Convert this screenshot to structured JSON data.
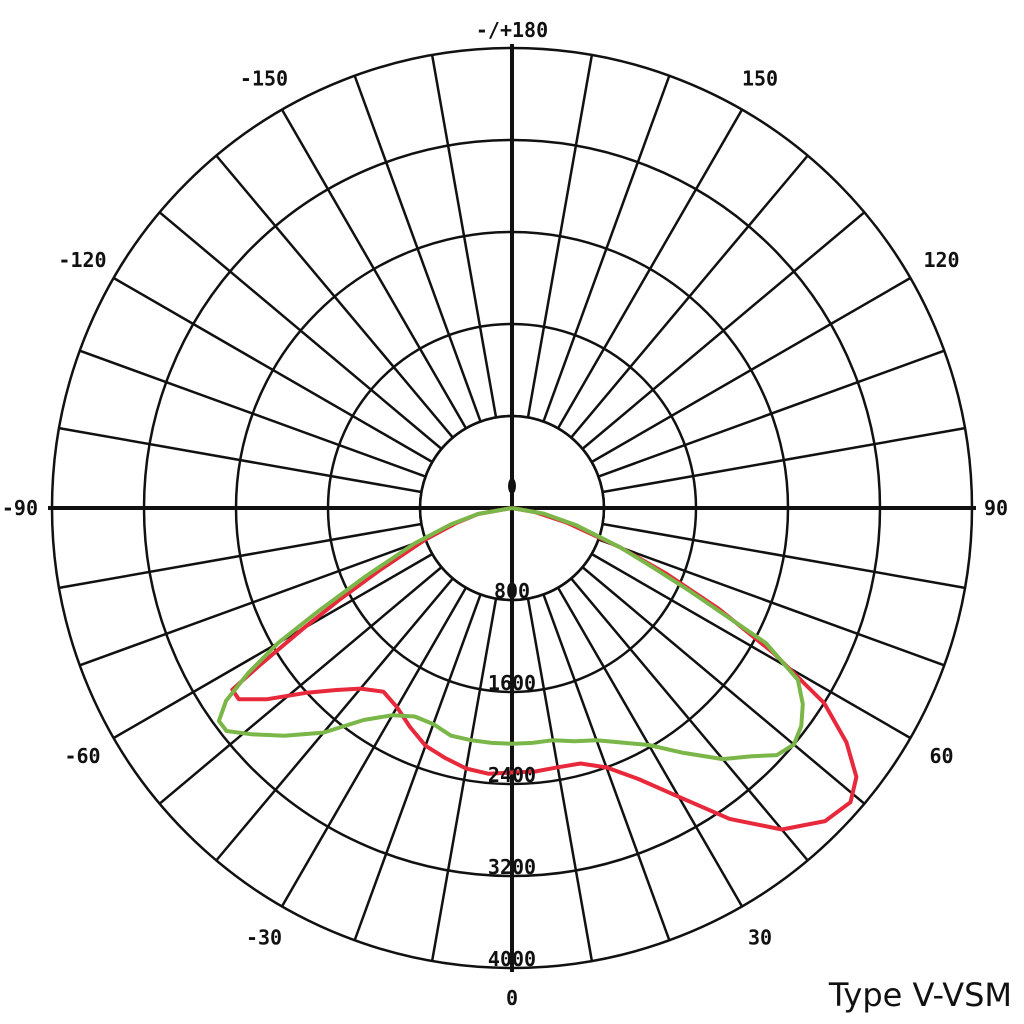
{
  "chart_data": {
    "type": "polar",
    "angle_unit": "degrees",
    "angle_zero": "bottom",
    "angle_direction": "positive to the right",
    "angle_range": [
      -180,
      180
    ],
    "angle_grid_step": 10,
    "angle_labels": [
      {
        "value": 0,
        "text": "0"
      },
      {
        "value": 30,
        "text": "30"
      },
      {
        "value": 60,
        "text": "60"
      },
      {
        "value": 90,
        "text": "90"
      },
      {
        "value": 120,
        "text": "120"
      },
      {
        "value": 150,
        "text": "150"
      },
      {
        "value": 180,
        "text": "-/+180"
      },
      {
        "value": -150,
        "text": "-150"
      },
      {
        "value": -120,
        "text": "-120"
      },
      {
        "value": -90,
        "text": "-90"
      },
      {
        "value": -60,
        "text": "-60"
      },
      {
        "value": -30,
        "text": "-30"
      }
    ],
    "radial_range": [
      0,
      4000
    ],
    "radial_ticks": [
      800,
      1600,
      2400,
      3200,
      4000
    ],
    "grid": true,
    "series": [
      {
        "color": "#e8293b",
        "points": [
          [
            -90,
            0
          ],
          [
            -80,
            300
          ],
          [
            -75,
            500
          ],
          [
            -70,
            800
          ],
          [
            -65,
            1250
          ],
          [
            -62,
            1700
          ],
          [
            -60,
            2100
          ],
          [
            -58,
            2600
          ],
          [
            -57,
            2900
          ],
          [
            -55,
            2900
          ],
          [
            -52,
            2700
          ],
          [
            -48,
            2400
          ],
          [
            -44,
            2200
          ],
          [
            -40,
            2050
          ],
          [
            -35,
            1950
          ],
          [
            -30,
            2000
          ],
          [
            -25,
            2100
          ],
          [
            -20,
            2200
          ],
          [
            -15,
            2250
          ],
          [
            -10,
            2300
          ],
          [
            -5,
            2320
          ],
          [
            0,
            2300
          ],
          [
            5,
            2300
          ],
          [
            10,
            2290
          ],
          [
            15,
            2300
          ],
          [
            20,
            2400
          ],
          [
            25,
            2600
          ],
          [
            30,
            2900
          ],
          [
            35,
            3300
          ],
          [
            40,
            3650
          ],
          [
            45,
            3850
          ],
          [
            49,
            3900
          ],
          [
            52,
            3800
          ],
          [
            55,
            3550
          ],
          [
            58,
            3200
          ],
          [
            61,
            2600
          ],
          [
            64,
            2000
          ],
          [
            67,
            1450
          ],
          [
            70,
            1000
          ],
          [
            75,
            500
          ],
          [
            80,
            200
          ],
          [
            90,
            0
          ]
        ]
      },
      {
        "color": "#7ab648",
        "points": [
          [
            -90,
            0
          ],
          [
            -80,
            300
          ],
          [
            -75,
            550
          ],
          [
            -70,
            900
          ],
          [
            -65,
            1400
          ],
          [
            -62,
            1900
          ],
          [
            -60,
            2350
          ],
          [
            -58,
            2700
          ],
          [
            -56,
            3000
          ],
          [
            -54,
            3150
          ],
          [
            -52,
            3150
          ],
          [
            -49,
            3000
          ],
          [
            -45,
            2800
          ],
          [
            -40,
            2550
          ],
          [
            -35,
            2250
          ],
          [
            -30,
            2080
          ],
          [
            -25,
            2000
          ],
          [
            -20,
            2000
          ],
          [
            -15,
            2050
          ],
          [
            -10,
            2050
          ],
          [
            -5,
            2050
          ],
          [
            0,
            2050
          ],
          [
            5,
            2050
          ],
          [
            10,
            2050
          ],
          [
            15,
            2100
          ],
          [
            20,
            2150
          ],
          [
            25,
            2250
          ],
          [
            30,
            2380
          ],
          [
            35,
            2600
          ],
          [
            40,
            2850
          ],
          [
            44,
            3000
          ],
          [
            47,
            3150
          ],
          [
            50,
            3200
          ],
          [
            53,
            3150
          ],
          [
            56,
            3050
          ],
          [
            59,
            2900
          ],
          [
            62,
            2500
          ],
          [
            65,
            1700
          ],
          [
            67,
            1350
          ],
          [
            70,
            1000
          ],
          [
            75,
            580
          ],
          [
            80,
            280
          ],
          [
            90,
            0
          ]
        ]
      }
    ]
  },
  "caption": "Type V-VSM"
}
